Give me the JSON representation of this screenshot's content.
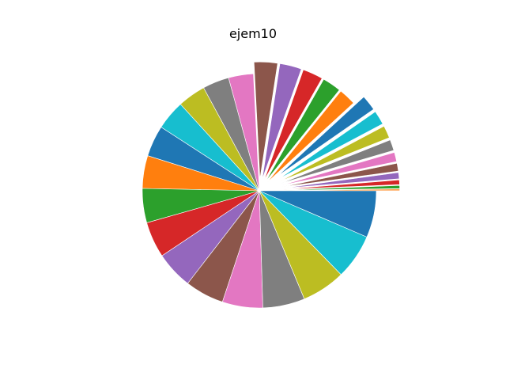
{
  "chart_data": {
    "type": "pie",
    "title": "ejem10",
    "start_angle_deg": 0,
    "direction": "counterclockwise",
    "values": [
      1,
      2,
      3,
      4,
      5,
      6,
      7,
      8,
      9,
      10,
      11,
      12,
      13,
      14,
      15,
      16,
      17,
      18,
      19,
      20,
      21,
      22,
      23,
      24,
      25,
      26,
      27,
      28,
      29,
      30
    ],
    "explode": [
      0.2,
      0.2,
      0.2,
      0.2,
      0.2,
      0.2,
      0.2,
      0.2,
      0.2,
      0.2,
      0.1,
      0.1,
      0.1,
      0.1,
      0.1,
      0,
      0,
      0,
      0,
      0,
      0,
      0,
      0,
      0,
      0,
      0,
      0,
      0,
      0,
      0
    ],
    "colors": [
      "#ff7f0e",
      "#2ca02c",
      "#d62728",
      "#9467bd",
      "#8c564b",
      "#e377c2",
      "#7f7f7f",
      "#bcbd22",
      "#17becf",
      "#1f77b4",
      "#ff7f0e",
      "#2ca02c",
      "#d62728",
      "#9467bd",
      "#8c564b",
      "#e377c2",
      "#7f7f7f",
      "#bcbd22",
      "#17becf",
      "#1f77b4",
      "#ff7f0e",
      "#2ca02c",
      "#d62728",
      "#9467bd",
      "#8c564b",
      "#e377c2",
      "#7f7f7f",
      "#bcbd22",
      "#17becf",
      "#1f77b4"
    ]
  }
}
